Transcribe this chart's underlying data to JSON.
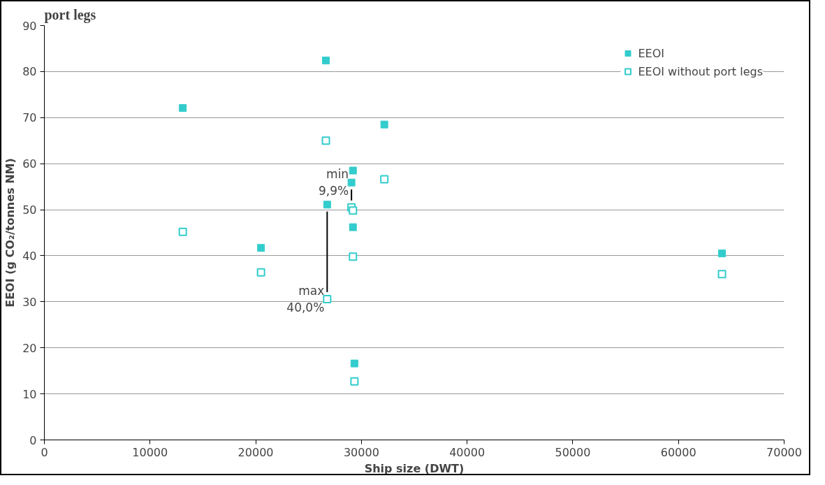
{
  "chart_data": {
    "type": "scatter",
    "title": "port legs",
    "xlabel": "Ship size (DWT)",
    "ylabel": "EEOI (g CO₂/tonnes NM)",
    "x": [
      13100,
      20500,
      26640,
      26760,
      29060,
      29200,
      29200,
      29340,
      32170,
      64120
    ],
    "series": [
      {
        "name": "EEOI",
        "color": "#33cccc",
        "values": [
          72.1,
          41.7,
          82.4,
          51.1,
          55.9,
          58.5,
          46.2,
          16.6,
          68.5,
          40.5
        ]
      },
      {
        "name": "EEOI without port legs",
        "color": "#33cccc",
        "values": [
          45.2,
          36.4,
          65.0,
          30.6,
          50.5,
          49.8,
          39.8,
          12.7,
          56.6,
          36.0
        ]
      }
    ],
    "annotations": [
      {
        "text": "min\n9,9%",
        "x": 29060,
        "y": 55.9
      },
      {
        "text": "max\n40,0%",
        "x": 26760,
        "y": 30.6
      }
    ],
    "xlim": [
      0,
      70000
    ],
    "ylim": [
      0,
      90
    ],
    "xticks": [
      0,
      10000,
      20000,
      30000,
      40000,
      50000,
      60000,
      70000
    ],
    "yticks": [
      0,
      10,
      20,
      30,
      40,
      50,
      60,
      70,
      80,
      90
    ],
    "grid": "y",
    "legend": "top right",
    "marker": "square"
  }
}
